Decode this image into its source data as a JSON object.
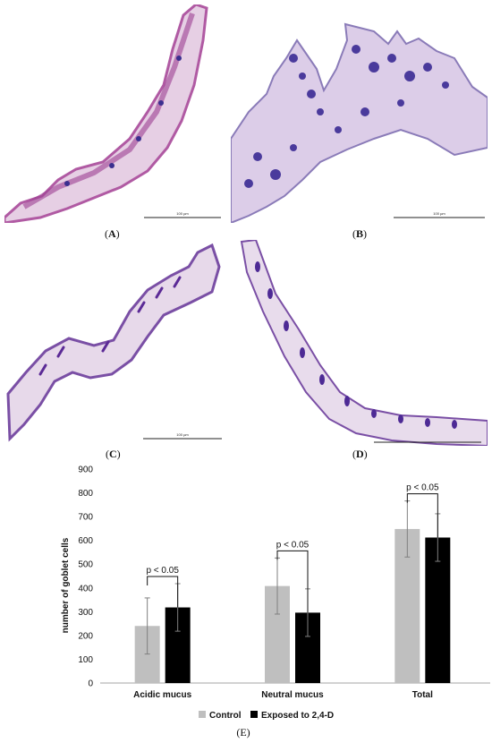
{
  "panels": [
    {
      "id": "A",
      "letter": "A",
      "scale_text": "100 µm"
    },
    {
      "id": "B",
      "letter": "B",
      "scale_text": "100 µm"
    },
    {
      "id": "C",
      "letter": "C",
      "scale_text": "100 µm"
    },
    {
      "id": "D",
      "letter": "D",
      "scale_text": ""
    }
  ],
  "chart_panel_letter": "E",
  "colors": {
    "control": "#bfbfbf",
    "exposed": "#000000",
    "axis": "#a6a6a6",
    "stain_pink": "#c06ab0",
    "stain_purple": "#3b2f8f"
  },
  "chart_data": {
    "type": "bar",
    "title": "",
    "xlabel": "",
    "ylabel": "number of goblet cells",
    "ylim": [
      0,
      900
    ],
    "yticks": [
      0,
      100,
      200,
      300,
      400,
      500,
      600,
      700,
      800,
      900
    ],
    "categories": [
      "Acidic mucus",
      "Neutral mucus",
      "Total"
    ],
    "series": [
      {
        "name": "Control",
        "values": [
          240,
          408,
          648
        ],
        "errors": [
          118,
          118,
          118
        ]
      },
      {
        "name": "Exposed to 2,4-D",
        "values": [
          318,
          296,
          612
        ],
        "errors": [
          100,
          100,
          100
        ]
      }
    ],
    "annotations": [
      "p < 0.05",
      "p < 0.05",
      "p < 0.05"
    ],
    "legend_position": "bottom",
    "grid": false
  }
}
